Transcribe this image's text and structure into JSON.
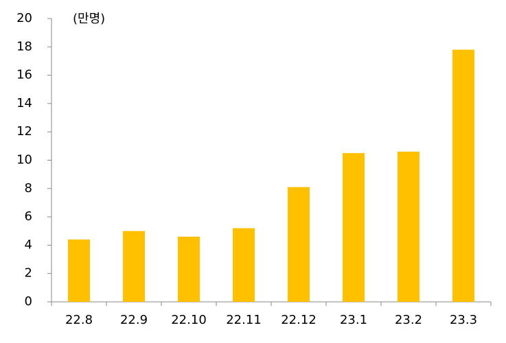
{
  "chart_data": {
    "type": "bar",
    "y_label": "(만명)",
    "categories": [
      "22.8",
      "22.9",
      "22.10",
      "22.11",
      "22.12",
      "23.1",
      "23.2",
      "23.3"
    ],
    "values": [
      4.4,
      5.0,
      4.6,
      5.2,
      8.1,
      10.5,
      10.6,
      17.8
    ],
    "color": "#ffc000",
    "ylim": [
      0,
      20
    ],
    "yticks": [
      0,
      2,
      4,
      6,
      8,
      10,
      12,
      14,
      16,
      18,
      20
    ],
    "grid": false
  }
}
